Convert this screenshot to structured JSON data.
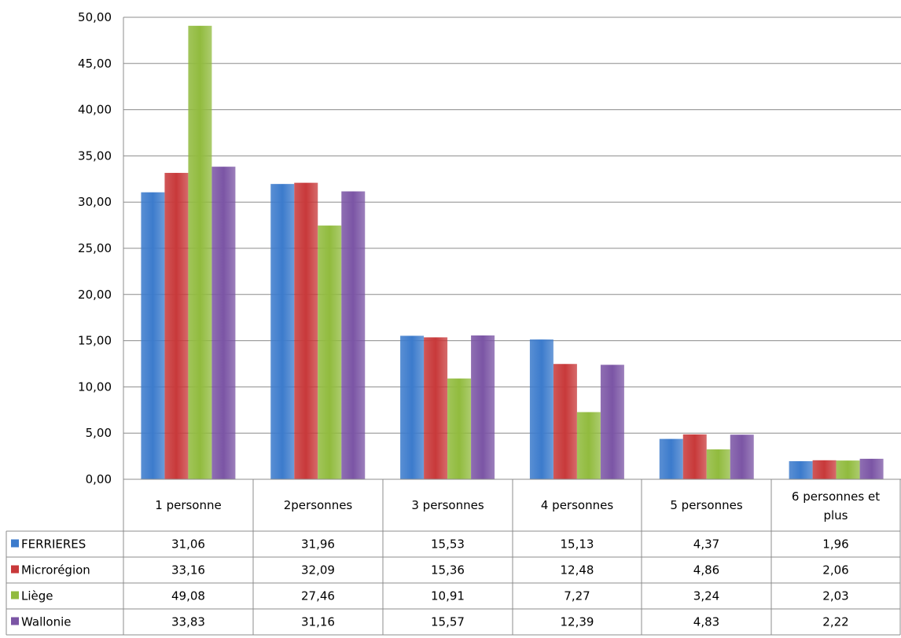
{
  "chart_data": {
    "type": "bar",
    "title": "",
    "xlabel": "",
    "ylabel": "",
    "ylim": [
      0,
      50
    ],
    "y_ticks": [
      "0,00",
      "5,00",
      "10,00",
      "15,00",
      "20,00",
      "25,00",
      "30,00",
      "35,00",
      "40,00",
      "45,00",
      "50,00"
    ],
    "grid": true,
    "legend": "data-table",
    "categories": [
      "1 personne",
      "2personnes",
      "3 personnes",
      "4 personnes",
      "5 personnes",
      "6 personnes et plus"
    ],
    "series": [
      {
        "name": "FERRIERES",
        "color": "#3c7bcc",
        "values": [
          31.06,
          31.96,
          15.53,
          15.13,
          4.37,
          1.96
        ],
        "labels": [
          "31,06",
          "31,96",
          "15,53",
          "15,13",
          "4,37",
          "1,96"
        ]
      },
      {
        "name": "Microrégion",
        "color": "#c8393a",
        "values": [
          33.16,
          32.09,
          15.36,
          12.48,
          4.86,
          2.06
        ],
        "labels": [
          "33,16",
          "32,09",
          "15,36",
          "12,48",
          "4,86",
          "2,06"
        ]
      },
      {
        "name": "Liège",
        "color": "#91bb3e",
        "values": [
          49.08,
          27.46,
          10.91,
          7.27,
          3.24,
          2.03
        ],
        "labels": [
          "49,08",
          "27,46",
          "10,91",
          "7,27",
          "3,24",
          "2,03"
        ]
      },
      {
        "name": "Wallonie",
        "color": "#7b55a5",
        "values": [
          33.83,
          31.16,
          15.57,
          12.39,
          4.83,
          2.22
        ],
        "labels": [
          "33,83",
          "31,16",
          "15,57",
          "12,39",
          "4,83",
          "2,22"
        ]
      }
    ]
  }
}
